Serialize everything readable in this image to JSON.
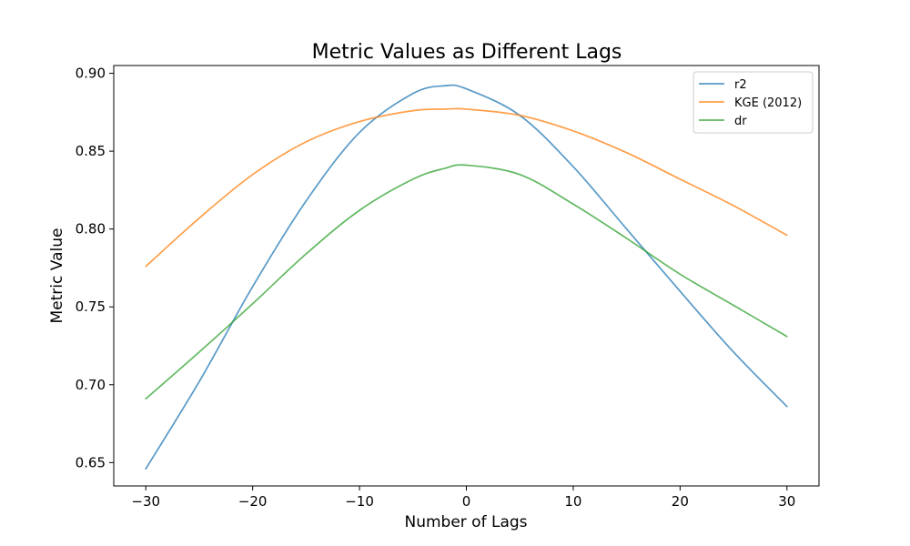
{
  "chart_data": {
    "type": "line",
    "title": "Metric Values as Different Lags",
    "xlabel": "Number of Lags",
    "ylabel": "Metric Value",
    "xlim": [
      -33,
      33
    ],
    "ylim": [
      0.635,
      0.905
    ],
    "xticks": [
      -30,
      -20,
      -10,
      0,
      10,
      20,
      30
    ],
    "xtick_labels": [
      "−30",
      "−20",
      "−10",
      "0",
      "10",
      "20",
      "30"
    ],
    "yticks": [
      0.65,
      0.7,
      0.75,
      0.8,
      0.85,
      0.9
    ],
    "ytick_labels": [
      "0.65",
      "0.70",
      "0.75",
      "0.80",
      "0.85",
      "0.90"
    ],
    "grid": false,
    "legend_position": "top-right",
    "x": [
      -30,
      -25,
      -20,
      -15,
      -10,
      -5,
      -2,
      0,
      5,
      10,
      15,
      20,
      25,
      30
    ],
    "series": [
      {
        "name": "r2",
        "color": "#1f77b4",
        "values": [
          0.646,
          0.702,
          0.763,
          0.818,
          0.862,
          0.887,
          0.892,
          0.89,
          0.873,
          0.84,
          0.8,
          0.76,
          0.721,
          0.686
        ]
      },
      {
        "name": "KGE (2012)",
        "color": "#ff7f0e",
        "values": [
          0.776,
          0.807,
          0.835,
          0.856,
          0.869,
          0.876,
          0.877,
          0.877,
          0.873,
          0.863,
          0.849,
          0.832,
          0.815,
          0.796
        ]
      },
      {
        "name": "dr",
        "color": "#2ca02c",
        "values": [
          0.691,
          0.721,
          0.752,
          0.784,
          0.812,
          0.832,
          0.839,
          0.841,
          0.835,
          0.816,
          0.794,
          0.771,
          0.751,
          0.731
        ]
      }
    ]
  }
}
